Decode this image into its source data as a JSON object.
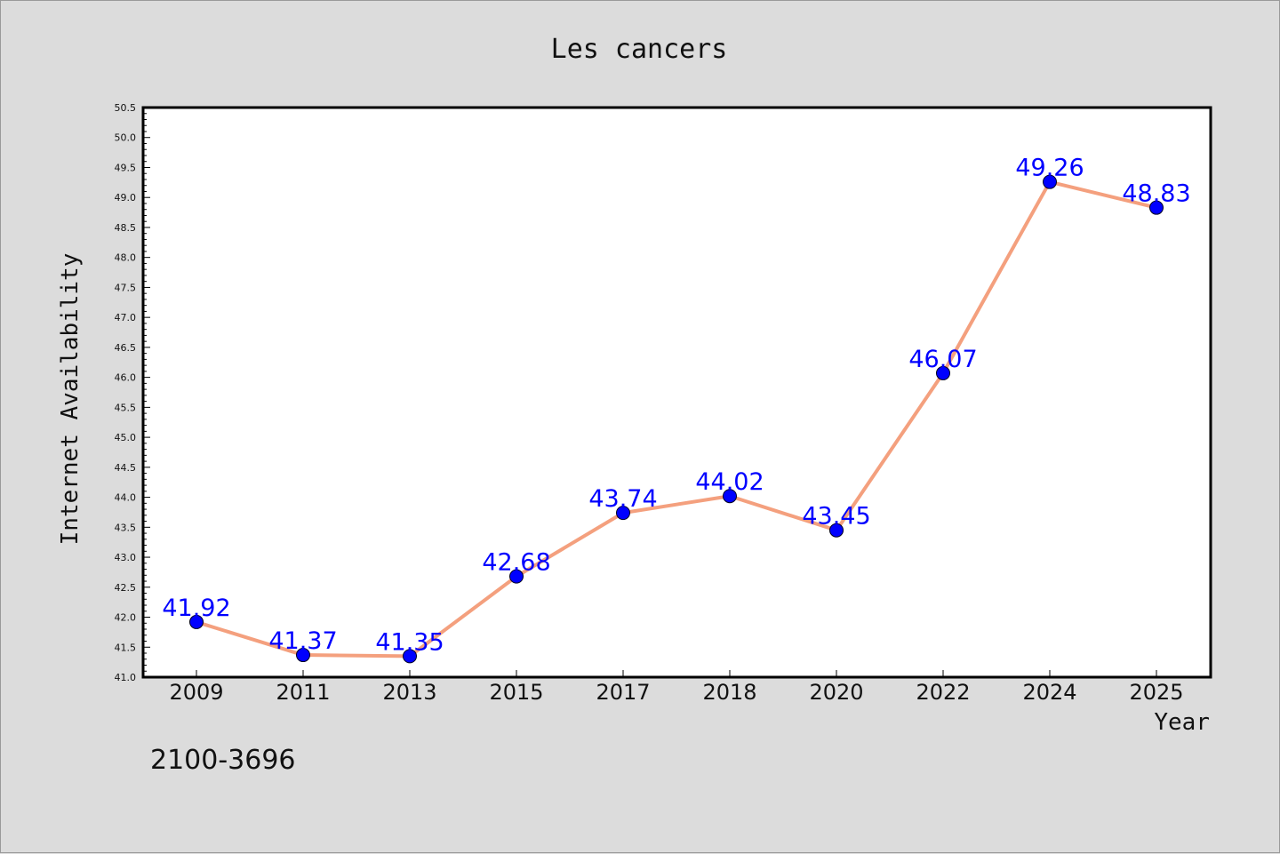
{
  "chart_data": {
    "type": "line",
    "title": "Les cancers",
    "xlabel": "Year",
    "ylabel": "Internet Availability",
    "categories": [
      "2009",
      "2011",
      "2013",
      "2015",
      "2017",
      "2018",
      "2020",
      "2022",
      "2024",
      "2025"
    ],
    "series": [
      {
        "values": [
          41.92,
          41.37,
          41.35,
          42.68,
          43.74,
          44.02,
          43.45,
          46.07,
          49.26,
          48.83
        ],
        "labels": [
          "41.92",
          "41.37",
          "41.35",
          "42.68",
          "43.74",
          "44.02",
          "43.45",
          "46.07",
          "49.26",
          "48.83"
        ],
        "line_color": "#f4a07e",
        "marker_color": "#0000ff"
      }
    ],
    "ylim": [
      41.0,
      50.5
    ],
    "y_tick_labels": [
      "41.0",
      "41.5",
      "42.0",
      "42.5",
      "43.0",
      "43.5",
      "44.0",
      "44.5",
      "45.0",
      "45.5",
      "46.0",
      "46.5",
      "47.0",
      "47.5",
      "48.0",
      "48.5",
      "49.0",
      "49.5",
      "50.0",
      "50.5"
    ],
    "grid": false,
    "legend": "none",
    "footnote": "2100-3696"
  }
}
